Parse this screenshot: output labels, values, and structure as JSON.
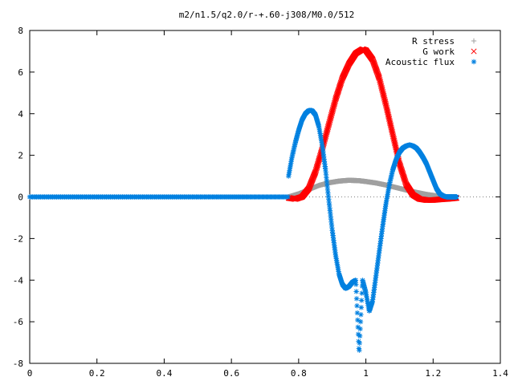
{
  "chart_data": {
    "type": "scatter",
    "title": "m2/n1.5/q2.0/r-+.60-j308/M0.0/512",
    "xlabel": "",
    "ylabel": "",
    "xlim": [
      0,
      1.4
    ],
    "ylim": [
      -8,
      8
    ],
    "x_ticks": [
      "0",
      "0.2",
      "0.4",
      "0.6",
      "0.8",
      "1",
      "1.2",
      "1.4"
    ],
    "y_ticks": [
      "-8",
      "-6",
      "-4",
      "-2",
      "0",
      "2",
      "4",
      "6",
      "8"
    ],
    "grid": false,
    "legend_position": "top-right",
    "series": [
      {
        "name": "R stress",
        "marker": "+",
        "color": "#a0a0a0",
        "x": [
          0.77,
          0.8,
          0.83,
          0.86,
          0.89,
          0.92,
          0.95,
          0.98,
          1.0,
          1.03,
          1.06,
          1.09,
          1.12,
          1.15,
          1.18,
          1.21,
          1.24,
          1.27
        ],
        "y": [
          0.0,
          0.15,
          0.35,
          0.55,
          0.68,
          0.76,
          0.8,
          0.78,
          0.74,
          0.67,
          0.57,
          0.45,
          0.33,
          0.22,
          0.12,
          0.05,
          0.01,
          0.0
        ]
      },
      {
        "name": "G work",
        "marker": "x",
        "color": "#ff0000",
        "x": [
          0.77,
          0.79,
          0.81,
          0.83,
          0.85,
          0.87,
          0.89,
          0.91,
          0.93,
          0.95,
          0.97,
          0.99,
          1.0,
          1.02,
          1.04,
          1.06,
          1.08,
          1.1,
          1.12,
          1.14,
          1.16,
          1.18,
          1.2,
          1.22,
          1.24,
          1.27
        ],
        "y": [
          -0.05,
          -0.1,
          0.0,
          0.4,
          1.2,
          2.3,
          3.5,
          4.7,
          5.7,
          6.4,
          6.9,
          7.1,
          7.05,
          6.6,
          5.7,
          4.4,
          3.0,
          1.6,
          0.6,
          0.1,
          -0.1,
          -0.15,
          -0.15,
          -0.12,
          -0.1,
          -0.05
        ]
      },
      {
        "name": "Acoustic flux",
        "marker": "*",
        "color": "#0080e0",
        "x": [
          0.77,
          0.78,
          0.79,
          0.8,
          0.81,
          0.82,
          0.83,
          0.84,
          0.85,
          0.86,
          0.87,
          0.88,
          0.89,
          0.9,
          0.91,
          0.92,
          0.93,
          0.94,
          0.95,
          0.96,
          0.97,
          0.98,
          0.99,
          1.0,
          1.01,
          1.02,
          1.03,
          1.04,
          1.05,
          1.06,
          1.07,
          1.08,
          1.09,
          1.1,
          1.11,
          1.12,
          1.13,
          1.14,
          1.15,
          1.16,
          1.17,
          1.18,
          1.19,
          1.2,
          1.21,
          1.22,
          1.23,
          1.24,
          1.25,
          1.26,
          1.27
        ],
        "y": [
          1.0,
          1.9,
          2.6,
          3.2,
          3.7,
          4.0,
          4.15,
          4.15,
          3.95,
          3.4,
          2.5,
          1.3,
          -0.2,
          -1.6,
          -2.8,
          -3.7,
          -4.2,
          -4.4,
          -4.3,
          -4.1,
          -4.0,
          -7.5,
          -4.0,
          -4.6,
          -5.5,
          -5.0,
          -3.8,
          -2.6,
          -1.4,
          -0.3,
          0.6,
          1.3,
          1.8,
          2.15,
          2.35,
          2.45,
          2.5,
          2.45,
          2.35,
          2.15,
          1.9,
          1.6,
          1.2,
          0.8,
          0.4,
          0.15,
          0.05,
          0.0,
          0.0,
          0.0,
          0.0
        ]
      }
    ]
  }
}
